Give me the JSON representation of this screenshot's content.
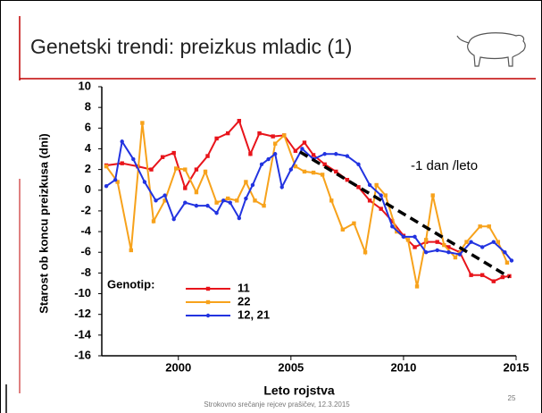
{
  "slide": {
    "title": "Genetski trendi: preizkus mladic (1)",
    "footer": "Strokovno srečanje rejcev prašičev, 12.3.2015",
    "page_number": "25"
  },
  "chart_data": {
    "type": "line",
    "y_label": "Starost ob koncu preizkusa (dni)",
    "x_label": "Leto rojstva",
    "legend_title": "Genotip:",
    "legend": "lower left",
    "annotation": "-1 dan /leto",
    "xlim": [
      1996.6,
      2015
    ],
    "xticks": [
      2000,
      2005,
      2010,
      2015
    ],
    "ylim": [
      -16,
      10
    ],
    "yticks": [
      -16,
      -14,
      -12,
      -10,
      -8,
      -6,
      -4,
      -2,
      0,
      2,
      4,
      6,
      8,
      10
    ],
    "series": [
      {
        "name": "11",
        "color": "#e8141b",
        "marker": "square",
        "x": [
          1996.8,
          1997.5,
          1998.2,
          1998.8,
          1999.3,
          1999.8,
          2000.3,
          2000.8,
          2001.3,
          2001.7,
          2002.2,
          2002.7,
          2003.2,
          2003.6,
          2004.2,
          2004.7,
          2005.2,
          2005.6,
          2006.0,
          2006.5,
          2007.0,
          2007.5,
          2008.0,
          2008.5,
          2009.0,
          2009.5,
          2010.0,
          2010.5,
          2011.0,
          2011.5,
          2012.0,
          2012.5,
          2013.0,
          2013.5,
          2014.0,
          2014.4,
          2014.7
        ],
        "values": [
          2.4,
          2.6,
          2.3,
          2.0,
          3.2,
          3.6,
          0.2,
          2.0,
          3.3,
          5.0,
          5.5,
          6.7,
          3.5,
          5.5,
          5.2,
          5.3,
          3.8,
          4.6,
          3.4,
          2.5,
          1.8,
          1.0,
          0.3,
          -1.0,
          -1.8,
          -3.0,
          -4.4,
          -5.5,
          -5.0,
          -5.0,
          -5.5,
          -6.0,
          -8.2,
          -8.2,
          -8.8,
          -8.4,
          -8.3
        ]
      },
      {
        "name": "22",
        "color": "#f7a21b",
        "marker": "square",
        "x": [
          1996.8,
          1997.3,
          1997.9,
          1998.4,
          1998.9,
          1999.4,
          1999.9,
          2000.3,
          2000.8,
          2001.2,
          2001.7,
          2002.2,
          2002.6,
          2003.0,
          2003.4,
          2003.8,
          2004.3,
          2004.7,
          2005.2,
          2005.6,
          2006.0,
          2006.4,
          2006.8,
          2007.3,
          2007.8,
          2008.3,
          2008.8,
          2009.2,
          2009.7,
          2010.2,
          2010.6,
          2011.0,
          2011.3,
          2011.8,
          2012.3,
          2012.8,
          2013.4,
          2013.8,
          2014.2,
          2014.6
        ],
        "values": [
          2.3,
          0.8,
          -5.8,
          6.5,
          -3.0,
          -1.0,
          2.1,
          2.0,
          -0.2,
          1.8,
          -1.2,
          -0.8,
          -1.0,
          0.8,
          -1.0,
          -1.5,
          4.5,
          5.3,
          2.3,
          1.8,
          1.7,
          1.5,
          -1.0,
          -3.8,
          -3.2,
          -6.0,
          0.5,
          -0.5,
          -4.0,
          -4.8,
          -9.3,
          -4.8,
          -0.5,
          -5.3,
          -6.5,
          -5.0,
          -3.5,
          -3.5,
          -5.0,
          -7.0
        ]
      },
      {
        "name": "12, 21",
        "color": "#2233e0",
        "marker": "circle",
        "x": [
          1996.8,
          1997.2,
          1997.5,
          1998.0,
          1998.5,
          1999.0,
          1999.4,
          1999.8,
          2000.3,
          2000.8,
          2001.3,
          2001.7,
          2002.0,
          2002.3,
          2002.7,
          2003.0,
          2003.3,
          2003.7,
          2004.0,
          2004.3,
          2004.6,
          2005.0,
          2005.5,
          2006.0,
          2006.5,
          2007.0,
          2007.5,
          2008.0,
          2008.5,
          2009.0,
          2009.5,
          2010.0,
          2010.5,
          2011.0,
          2011.5,
          2012.0,
          2012.5,
          2013.0,
          2013.5,
          2014.0,
          2014.5,
          2014.8
        ],
        "values": [
          0.4,
          1.0,
          4.7,
          3.0,
          0.8,
          -1.0,
          -0.5,
          -2.8,
          -1.2,
          -1.5,
          -1.5,
          -2.2,
          -1.0,
          -1.2,
          -2.7,
          -0.8,
          0.5,
          2.5,
          3.0,
          3.5,
          0.3,
          2.0,
          4.0,
          3.0,
          3.5,
          3.5,
          3.3,
          2.5,
          0.5,
          -0.5,
          -3.5,
          -4.5,
          -4.5,
          -6.0,
          -5.8,
          -6.0,
          -6.2,
          -5.0,
          -5.5,
          -5.0,
          -6.0,
          -6.8
        ]
      }
    ],
    "trend_line": {
      "x": [
        2005.4,
        2014.7
      ],
      "y": [
        3.7,
        -8.4
      ],
      "color": "#000000"
    }
  }
}
